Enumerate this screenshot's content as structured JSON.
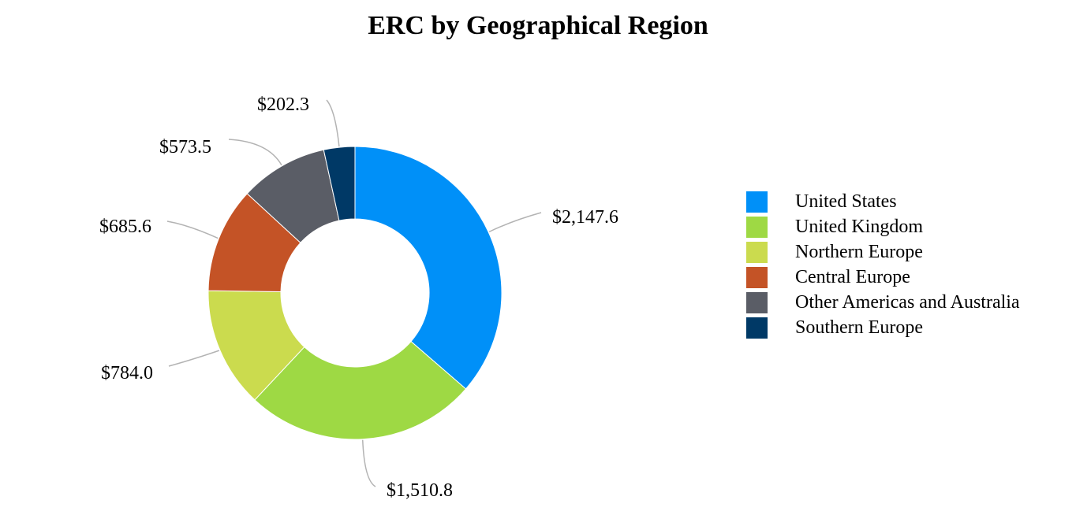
{
  "chart_data": {
    "type": "pie",
    "title": "ERC by Geographical Region",
    "legend_position": "right",
    "slices": [
      {
        "label": "United States",
        "value": 2147.6,
        "value_label": "$2,147.6",
        "color": "#0090F8"
      },
      {
        "label": "United Kingdom",
        "value": 1510.8,
        "value_label": "$1,510.8",
        "color": "#9ED944"
      },
      {
        "label": "Northern Europe",
        "value": 784.0,
        "value_label": "$784.0",
        "color": "#CBDB4E"
      },
      {
        "label": "Central Europe",
        "value": 685.6,
        "value_label": "$685.6",
        "color": "#C45326"
      },
      {
        "label": "Other Americas and Australia",
        "value": 573.5,
        "value_label": "$573.5",
        "color": "#5A5D66"
      },
      {
        "label": "Southern Europe",
        "value": 202.3,
        "value_label": "$202.3",
        "color": "#003966"
      }
    ]
  }
}
